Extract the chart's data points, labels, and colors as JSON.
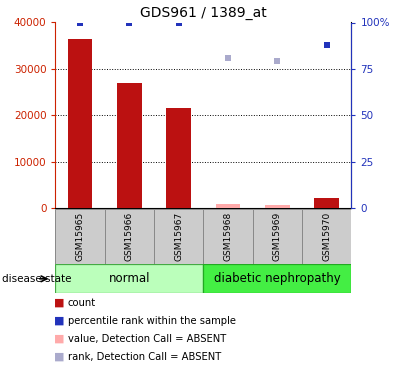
{
  "title": "GDS961 / 1389_at",
  "samples": [
    "GSM15965",
    "GSM15966",
    "GSM15967",
    "GSM15968",
    "GSM15969",
    "GSM15970"
  ],
  "count_values": [
    36500,
    27000,
    21500,
    null,
    null,
    2200
  ],
  "count_absent_values": [
    null,
    null,
    null,
    900,
    700,
    null
  ],
  "percentile_rank_values": [
    100,
    100,
    100,
    null,
    null,
    88
  ],
  "rank_absent_values": [
    null,
    null,
    null,
    81,
    79,
    null
  ],
  "bar_color": "#bb1111",
  "bar_absent_color": "#ffaaaa",
  "rank_color": "#2233bb",
  "rank_absent_color": "#aaaacc",
  "ylim_left": [
    0,
    40000
  ],
  "ylim_right": [
    0,
    100
  ],
  "yticks_left": [
    0,
    10000,
    20000,
    30000,
    40000
  ],
  "ytick_labels_left": [
    "0",
    "10000",
    "20000",
    "30000",
    "40000"
  ],
  "yticks_right": [
    0,
    25,
    50,
    75,
    100
  ],
  "ytick_labels_right": [
    "0",
    "25",
    "50",
    "75",
    "100%"
  ],
  "grid_lines": [
    10000,
    20000,
    30000
  ],
  "group_normal_label": "normal",
  "group_diabetic_label": "diabetic nephropathy",
  "group_normal_color": "#bbffbb",
  "group_diabetic_color": "#44ee44",
  "disease_state_label": "disease state",
  "legend_items": [
    {
      "label": "count",
      "color": "#bb1111"
    },
    {
      "label": "percentile rank within the sample",
      "color": "#2233bb"
    },
    {
      "label": "value, Detection Call = ABSENT",
      "color": "#ffaaaa"
    },
    {
      "label": "rank, Detection Call = ABSENT",
      "color": "#aaaacc"
    }
  ],
  "bar_width": 0.5,
  "sample_box_color": "#cccccc",
  "axes_label_color_left": "#cc2200",
  "axes_label_color_right": "#2233bb",
  "fig_bg": "#ffffff"
}
